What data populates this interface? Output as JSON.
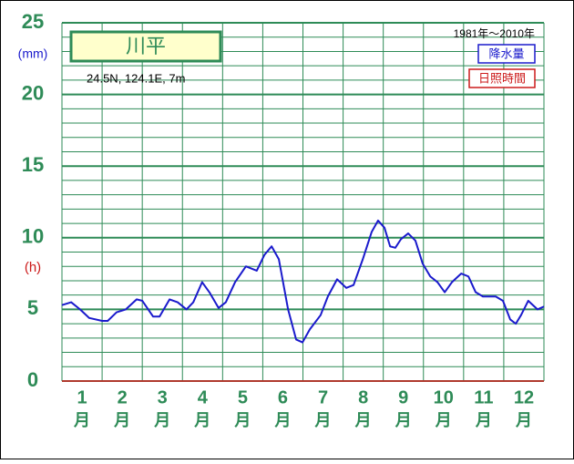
{
  "chart_data": {
    "type": "line",
    "title": "川平",
    "subtitle": "24.5N,  124.1E,  7m",
    "period": "1981年〜2010年",
    "y_unit_left": "(mm)",
    "y_unit_right": "(h)",
    "categories": [
      "1",
      "2",
      "3",
      "4",
      "5",
      "6",
      "7",
      "8",
      "9",
      "10",
      "11",
      "12"
    ],
    "month_unit": "月",
    "xlim": [
      0,
      12
    ],
    "ylim": [
      0,
      25
    ],
    "yticks": [
      0,
      5,
      10,
      15,
      20,
      25
    ],
    "grid": true,
    "legend": [
      {
        "name": "降水量",
        "color": "#1a1acc"
      },
      {
        "name": "日照時間",
        "color": "#cc1a1a"
      }
    ],
    "series": [
      {
        "name": "降水量",
        "color": "#1a1acc",
        "x": [
          0,
          0.23,
          0.45,
          0.68,
          1.0,
          1.14,
          1.36,
          1.59,
          1.86,
          2.0,
          2.27,
          2.43,
          2.68,
          2.88,
          3.1,
          3.27,
          3.49,
          3.67,
          3.9,
          4.08,
          4.31,
          4.58,
          4.85,
          5.04,
          5.22,
          5.4,
          5.63,
          5.83,
          5.99,
          6.17,
          6.44,
          6.62,
          6.85,
          7.08,
          7.26,
          7.49,
          7.71,
          7.87,
          8.03,
          8.17,
          8.3,
          8.44,
          8.62,
          8.8,
          8.98,
          9.17,
          9.35,
          9.53,
          9.71,
          9.94,
          10.12,
          10.3,
          10.48,
          10.8,
          10.98,
          11.16,
          11.3,
          11.43,
          11.61,
          11.84,
          12
        ],
        "values": [
          5.3,
          5.5,
          5.0,
          4.4,
          4.2,
          4.2,
          4.8,
          5.0,
          5.7,
          5.6,
          4.5,
          4.5,
          5.7,
          5.5,
          5.0,
          5.5,
          6.9,
          6.2,
          5.1,
          5.5,
          6.9,
          8.0,
          7.7,
          8.8,
          9.4,
          8.5,
          5.0,
          2.9,
          2.7,
          3.6,
          4.6,
          5.9,
          7.1,
          6.5,
          6.7,
          8.5,
          10.4,
          11.2,
          10.7,
          9.4,
          9.3,
          9.9,
          10.3,
          9.8,
          8.2,
          7.3,
          6.9,
          6.2,
          6.9,
          7.5,
          7.3,
          6.2,
          5.9,
          5.9,
          5.6,
          4.3,
          4.0,
          4.6,
          5.6,
          5.0,
          5.2
        ]
      }
    ]
  }
}
